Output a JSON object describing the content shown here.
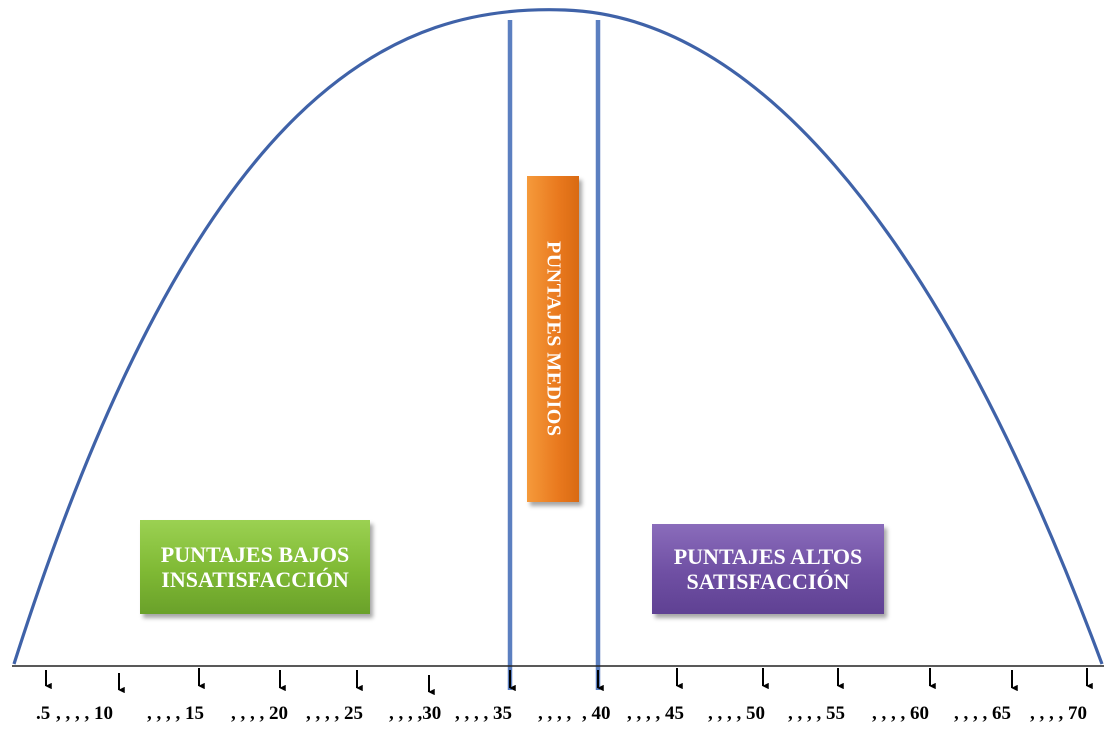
{
  "boxes": {
    "low": {
      "line1": "PUNTAJES BAJOS",
      "line2": "INSATISFACCIÓN",
      "color": "#7fb934"
    },
    "mid": {
      "label": "PUNTAJES MEDIOS",
      "color": "#e9791e"
    },
    "high": {
      "line1": "PUNTAJES ALTOS",
      "line2": "SATISFACCIÓN",
      "color": "#6f4fa3"
    }
  },
  "curve_color": "#3f62a8",
  "axis_labels": [
    ".5",
    ", , , , 10",
    ", , , , 15",
    ", , , , 20",
    ", , , , 25",
    ", , , ,30",
    ", , , , 35",
    ", , , ,",
    ", 40",
    ", , , , 45",
    ", , , , 50",
    ", , , , 55",
    ", , , , 60",
    ", , , , 65",
    ", , , , 70"
  ]
}
